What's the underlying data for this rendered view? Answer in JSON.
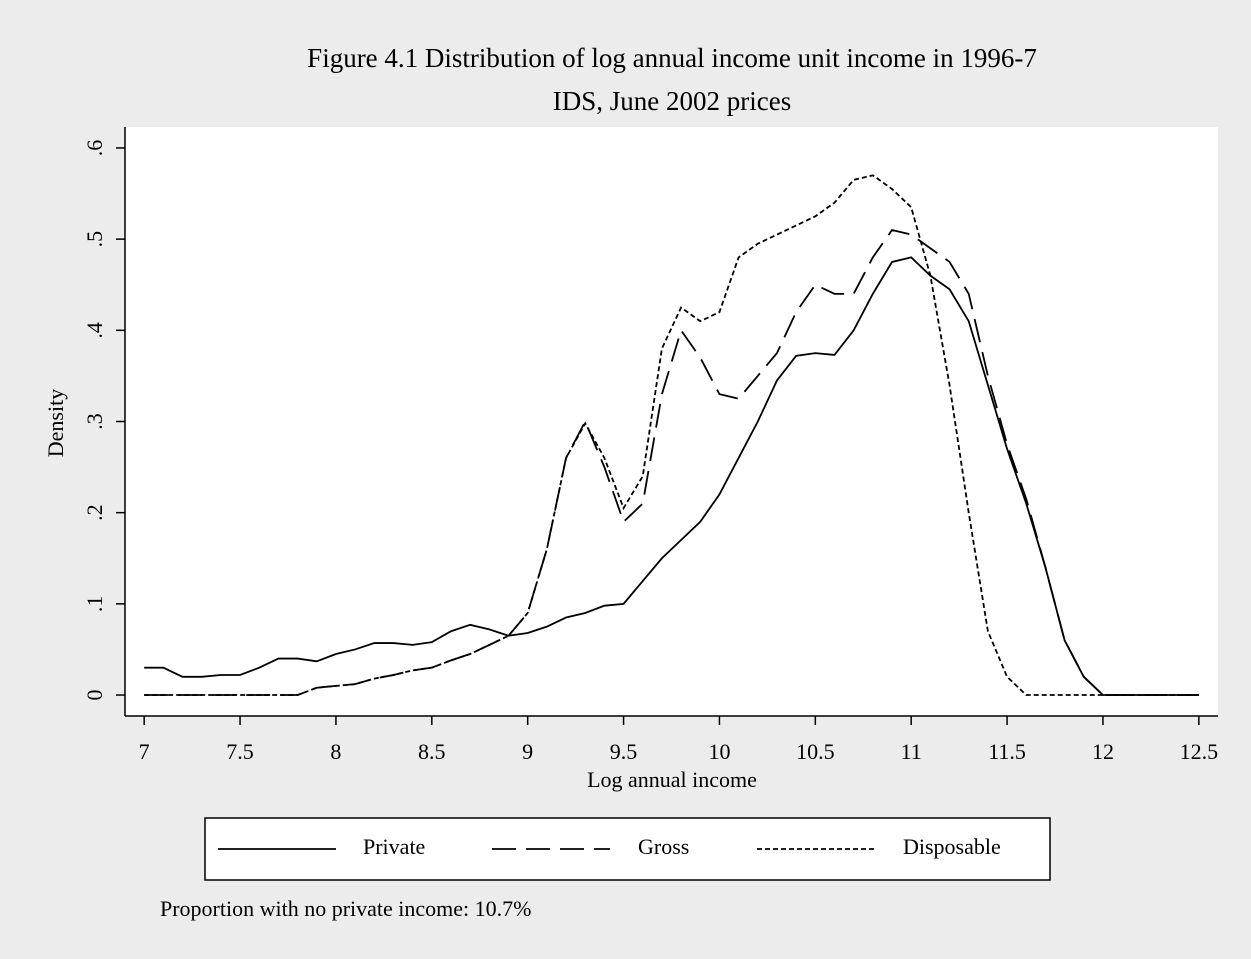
{
  "chart_data": {
    "type": "line",
    "title": "Figure 4.1 Distribution of log annual income unit income in 1996-7",
    "subtitle": "IDS, June 2002 prices",
    "x_label": "Log annual income",
    "y_label": "Density",
    "note": "Proportion with no private income: 10.7%",
    "x": [
      7.0,
      7.1,
      7.2,
      7.3,
      7.4,
      7.5,
      7.6,
      7.7,
      7.8,
      7.9,
      8.0,
      8.1,
      8.2,
      8.3,
      8.4,
      8.5,
      8.6,
      8.7,
      8.8,
      8.9,
      9.0,
      9.1,
      9.2,
      9.3,
      9.4,
      9.5,
      9.6,
      9.7,
      9.8,
      9.9,
      10.0,
      10.1,
      10.2,
      10.3,
      10.4,
      10.5,
      10.6,
      10.7,
      10.8,
      10.9,
      11.0,
      11.1,
      11.2,
      11.3,
      11.4,
      11.5,
      11.6,
      11.7,
      11.8,
      11.9,
      12.0,
      12.1,
      12.2,
      12.3,
      12.4,
      12.5
    ],
    "series": [
      {
        "name": "Private",
        "color": "#000000",
        "dash": "solid",
        "values": [
          0.03,
          0.03,
          0.02,
          0.02,
          0.022,
          0.022,
          0.03,
          0.04,
          0.04,
          0.037,
          0.045,
          0.05,
          0.057,
          0.057,
          0.055,
          0.058,
          0.07,
          0.077,
          0.072,
          0.065,
          0.068,
          0.075,
          0.085,
          0.09,
          0.098,
          0.1,
          0.125,
          0.15,
          0.17,
          0.19,
          0.22,
          0.26,
          0.3,
          0.345,
          0.372,
          0.375,
          0.373,
          0.4,
          0.44,
          0.475,
          0.48,
          0.46,
          0.445,
          0.41,
          0.34,
          0.27,
          0.21,
          0.14,
          0.06,
          0.02,
          0,
          0,
          0,
          0,
          0,
          0
        ]
      },
      {
        "name": "Gross",
        "color": "#000000",
        "dash": "dashed",
        "values": [
          0,
          0,
          0,
          0,
          0,
          0,
          0,
          0,
          0,
          0.008,
          0.01,
          0.012,
          0.018,
          0.022,
          0.027,
          0.03,
          0.038,
          0.045,
          0.055,
          0.065,
          0.09,
          0.16,
          0.26,
          0.3,
          0.25,
          0.19,
          0.21,
          0.33,
          0.4,
          0.37,
          0.33,
          0.325,
          0.35,
          0.375,
          0.42,
          0.45,
          0.44,
          0.44,
          0.48,
          0.51,
          0.505,
          0.49,
          0.475,
          0.44,
          0.35,
          0.275,
          0.215,
          0.14,
          0.06,
          0.02,
          0,
          0,
          0,
          0,
          0,
          0
        ]
      },
      {
        "name": "Disposable",
        "color": "#000000",
        "dash": "dotted",
        "values": [
          0,
          0,
          0,
          0,
          0,
          0,
          0,
          0,
          0,
          0.008,
          0.01,
          0.012,
          0.018,
          0.022,
          0.027,
          0.03,
          0.038,
          0.045,
          0.055,
          0.065,
          0.09,
          0.16,
          0.26,
          0.298,
          0.26,
          0.205,
          0.24,
          0.38,
          0.425,
          0.41,
          0.42,
          0.48,
          0.495,
          0.505,
          0.515,
          0.525,
          0.54,
          0.565,
          0.57,
          0.555,
          0.535,
          0.46,
          0.34,
          0.2,
          0.07,
          0.02,
          0,
          0,
          0,
          0,
          0,
          0,
          0,
          0,
          0,
          0
        ]
      }
    ],
    "xlim": [
      6.9,
      12.6
    ],
    "ylim": [
      -0.023,
      0.623
    ],
    "xticks": [
      7,
      7.5,
      8,
      8.5,
      9,
      9.5,
      10,
      10.5,
      11,
      11.5,
      12,
      12.5
    ],
    "yticks": [
      0,
      {
        "value": 0.1,
        "label": ".1"
      },
      {
        "value": 0.2,
        "label": ".2"
      },
      {
        "value": 0.3,
        "label": ".3"
      },
      {
        "value": 0.4,
        "label": ".4"
      },
      {
        "value": 0.5,
        "label": ".5"
      },
      {
        "value": 0.6,
        "label": ".6"
      }
    ],
    "legend": "bottom"
  }
}
